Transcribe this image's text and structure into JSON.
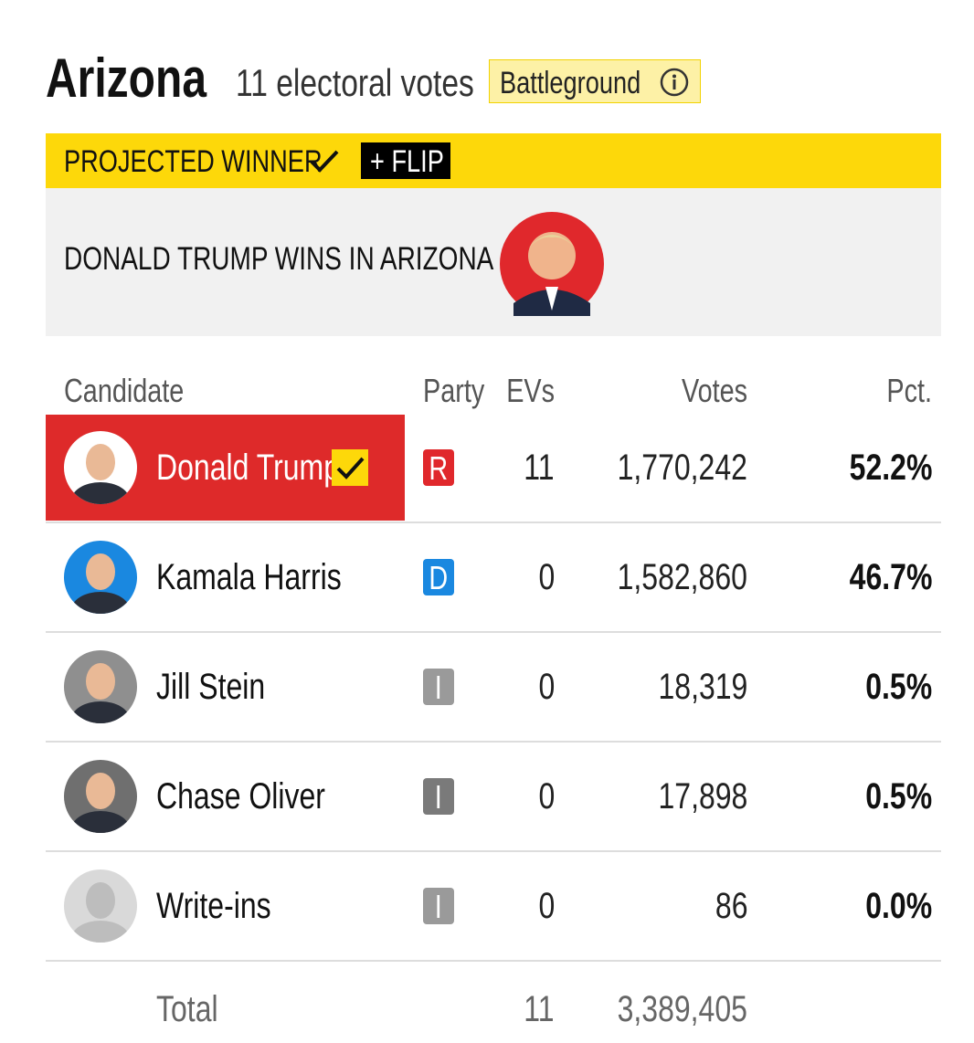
{
  "header": {
    "state": "Arizona",
    "electoral_votes": "11 electoral votes",
    "badge": "Battleground"
  },
  "banner": {
    "label": "PROJECTED WINNER",
    "flip": "+ FLIP",
    "winner_text": "DONALD TRUMP WINS IN ARIZONA"
  },
  "table": {
    "columns": [
      "Candidate",
      "Party",
      "EVs",
      "Votes",
      "Pct."
    ],
    "rows": [
      {
        "name": "Donald Trump",
        "party": "R",
        "party_color": "#e0282c",
        "avatar_color": "#e0282c",
        "evs": "11",
        "votes": "1,770,242",
        "pct": "52.2%",
        "winner": true
      },
      {
        "name": "Kamala Harris",
        "party": "D",
        "party_color": "#1a88e0",
        "avatar_color": "#1a88e0",
        "evs": "0",
        "votes": "1,582,860",
        "pct": "46.7%",
        "winner": false
      },
      {
        "name": "Jill Stein",
        "party": "I",
        "party_color": "#9a9a9a",
        "avatar_color": "#8f8f8f",
        "evs": "0",
        "votes": "18,319",
        "pct": "0.5%",
        "winner": false
      },
      {
        "name": "Chase Oliver",
        "party": "I",
        "party_color": "#7a7a7a",
        "avatar_color": "#6f6f6f",
        "evs": "0",
        "votes": "17,898",
        "pct": "0.5%",
        "winner": false
      },
      {
        "name": "Write-ins",
        "party": "I",
        "party_color": "#9a9a9a",
        "avatar_color": "#d9d9d9",
        "evs": "0",
        "votes": "86",
        "pct": "0.0%",
        "winner": false
      }
    ],
    "total": {
      "label": "Total",
      "evs": "11",
      "votes": "3,389,405"
    }
  }
}
